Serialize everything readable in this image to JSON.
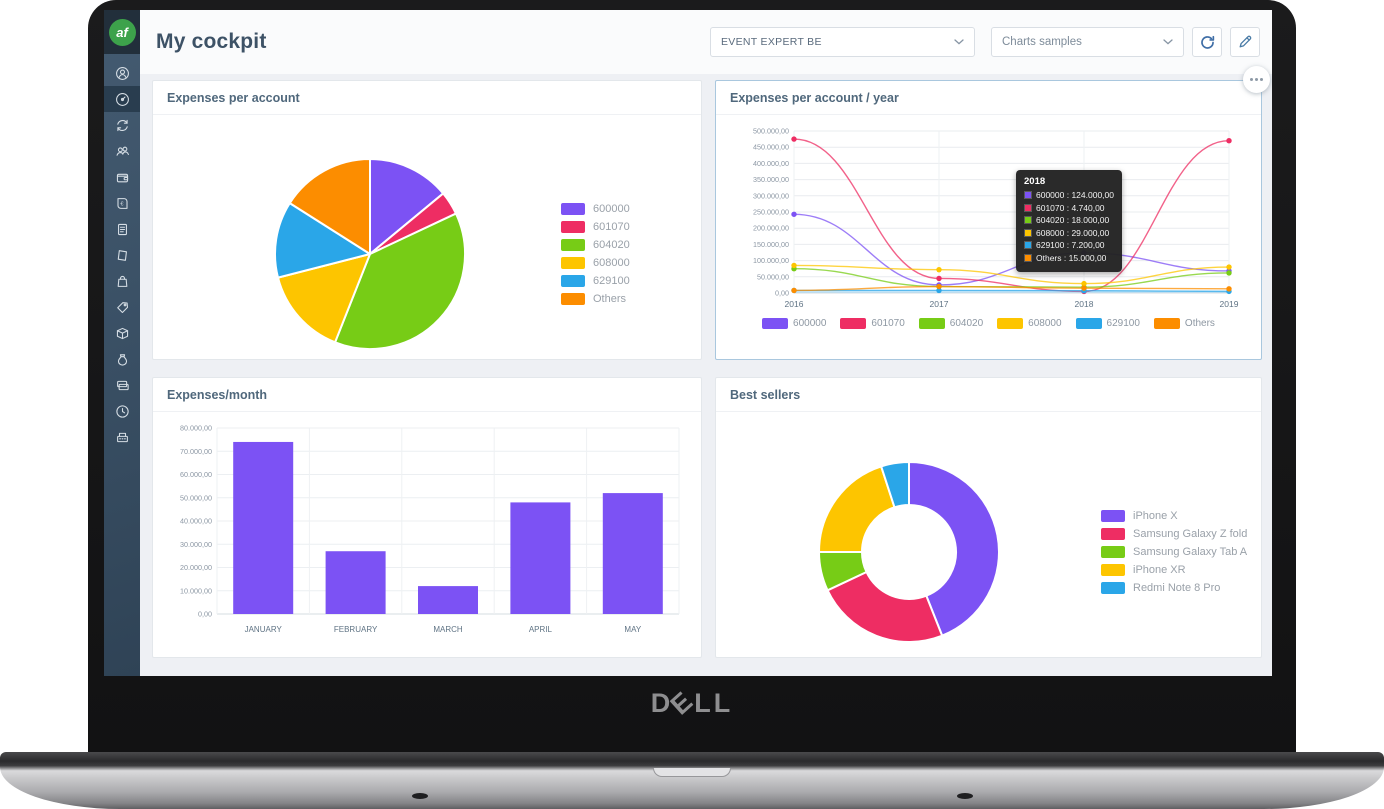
{
  "laptop": {
    "brand": "DELL"
  },
  "sidebar": {
    "logo_text": "af",
    "items": [
      {
        "icon": "user-icon",
        "active": false
      },
      {
        "icon": "dashboard-icon",
        "active": true
      },
      {
        "icon": "sync-icon",
        "active": false
      },
      {
        "icon": "team-icon",
        "active": false
      },
      {
        "icon": "wallet-icon",
        "active": false
      },
      {
        "icon": "ledger-icon",
        "active": false
      },
      {
        "icon": "document-icon",
        "active": false
      },
      {
        "icon": "note-icon",
        "active": false
      },
      {
        "icon": "shop-icon",
        "active": false
      },
      {
        "icon": "tag-icon",
        "active": false
      },
      {
        "icon": "package-icon",
        "active": false
      },
      {
        "icon": "money-bag-icon",
        "active": false
      },
      {
        "icon": "payment-cards-icon",
        "active": false
      },
      {
        "icon": "clock-icon",
        "active": false
      },
      {
        "icon": "cash-register-icon",
        "active": false
      }
    ]
  },
  "header": {
    "title": "My cockpit",
    "company_select": "EVENT EXPERT BE",
    "dashboard_select": "Charts samples"
  },
  "ui_colors": {
    "sidebar_bg": "#3a5065",
    "sidebar_active": "#293d4f",
    "logo_green": "#3da24b",
    "highlight_border": "#a9c7de",
    "panel_title": "#50687c"
  },
  "chart_data": [
    {
      "type": "pie",
      "title": "Expenses per account",
      "labels": [
        "600000",
        "601070",
        "604020",
        "608000",
        "629100",
        "Others"
      ],
      "values": [
        14,
        4,
        38,
        15,
        13,
        16
      ],
      "colors": [
        "#7c52f4",
        "#ee2d63",
        "#77cc16",
        "#fdc500",
        "#2aa6e8",
        "#fc8d00"
      ],
      "legend_position": "right"
    },
    {
      "type": "line",
      "title": "Expenses per account / year",
      "x": [
        "2016",
        "2017",
        "2018",
        "2019"
      ],
      "series": [
        {
          "name": "600000",
          "color": "#7c52f4",
          "values": [
            243000,
            25000,
            124000,
            68000
          ]
        },
        {
          "name": "601070",
          "color": "#ee2d63",
          "values": [
            475000,
            45000,
            4740,
            470000
          ]
        },
        {
          "name": "604020",
          "color": "#77cc16",
          "values": [
            75000,
            20000,
            18000,
            62000
          ]
        },
        {
          "name": "608000",
          "color": "#fdc500",
          "values": [
            85000,
            72000,
            29000,
            80000
          ]
        },
        {
          "name": "629100",
          "color": "#2aa6e8",
          "values": [
            8000,
            8000,
            7200,
            5000
          ],
          "area": true
        },
        {
          "name": "Others",
          "color": "#fc8d00",
          "values": [
            8000,
            20000,
            15000,
            13000
          ]
        }
      ],
      "ylim": [
        0,
        500000
      ],
      "ytick_step": 50000,
      "grid": true,
      "legend_position": "bottom",
      "tooltip": {
        "title": "2018",
        "rows": [
          {
            "label": "600000",
            "value": "124.000,00"
          },
          {
            "label": "601070",
            "value": "4.740,00"
          },
          {
            "label": "604020",
            "value": "18.000,00"
          },
          {
            "label": "608000",
            "value": "29.000,00"
          },
          {
            "label": "629100",
            "value": "7.200,00"
          },
          {
            "label": "Others",
            "value": "15.000,00"
          }
        ]
      }
    },
    {
      "type": "bar",
      "title": "Expenses/month",
      "categories": [
        "JANUARY",
        "FEBRUARY",
        "MARCH",
        "APRIL",
        "MAY"
      ],
      "values": [
        74000,
        27000,
        12000,
        48000,
        52000
      ],
      "color": "#7c52f4",
      "ylim": [
        0,
        80000
      ],
      "ytick_step": 10000,
      "grid": true
    },
    {
      "type": "donut",
      "title": "Best sellers",
      "labels": [
        "iPhone X",
        "Samsung Galaxy Z fold",
        "Samsung Galaxy Tab A",
        "iPhone XR",
        "Redmi Note 8 Pro"
      ],
      "values": [
        44,
        24,
        7,
        20,
        5
      ],
      "colors": [
        "#7c52f4",
        "#ee2d63",
        "#77cc16",
        "#fdc500",
        "#2aa6e8"
      ],
      "legend_position": "right"
    }
  ]
}
